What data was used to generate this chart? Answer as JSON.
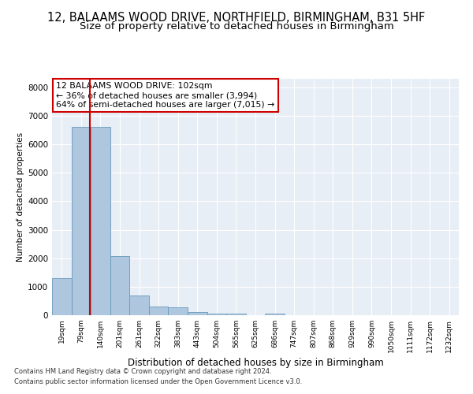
{
  "title": "12, BALAAMS WOOD DRIVE, NORTHFIELD, BIRMINGHAM, B31 5HF",
  "subtitle": "Size of property relative to detached houses in Birmingham",
  "xlabel": "Distribution of detached houses by size in Birmingham",
  "ylabel": "Number of detached properties",
  "footnote1": "Contains HM Land Registry data © Crown copyright and database right 2024.",
  "footnote2": "Contains public sector information licensed under the Open Government Licence v3.0.",
  "bar_labels": [
    "19sqm",
    "79sqm",
    "140sqm",
    "201sqm",
    "261sqm",
    "322sqm",
    "383sqm",
    "443sqm",
    "504sqm",
    "565sqm",
    "625sqm",
    "686sqm",
    "747sqm",
    "807sqm",
    "868sqm",
    "929sqm",
    "990sqm",
    "1050sqm",
    "1111sqm",
    "1172sqm",
    "1232sqm"
  ],
  "bar_values": [
    1300,
    6600,
    6600,
    2080,
    680,
    300,
    280,
    120,
    65,
    65,
    0,
    65,
    0,
    0,
    0,
    0,
    0,
    0,
    0,
    0,
    0
  ],
  "bar_color": "#aec6de",
  "bar_edge_color": "#6699bb",
  "vline_x": 1.47,
  "vline_color": "#cc0000",
  "annotation_line1": "12 BALAAMS WOOD DRIVE: 102sqm",
  "annotation_line2": "← 36% of detached houses are smaller (3,994)",
  "annotation_line3": "64% of semi-detached houses are larger (7,015) →",
  "annotation_box_color": "#ffffff",
  "annotation_box_edge": "#cc0000",
  "ylim": [
    0,
    8300
  ],
  "yticks": [
    0,
    1000,
    2000,
    3000,
    4000,
    5000,
    6000,
    7000,
    8000
  ],
  "bg_color": "#e8eef5",
  "grid_color": "#ffffff",
  "title_fontsize": 10.5,
  "subtitle_fontsize": 9.5
}
